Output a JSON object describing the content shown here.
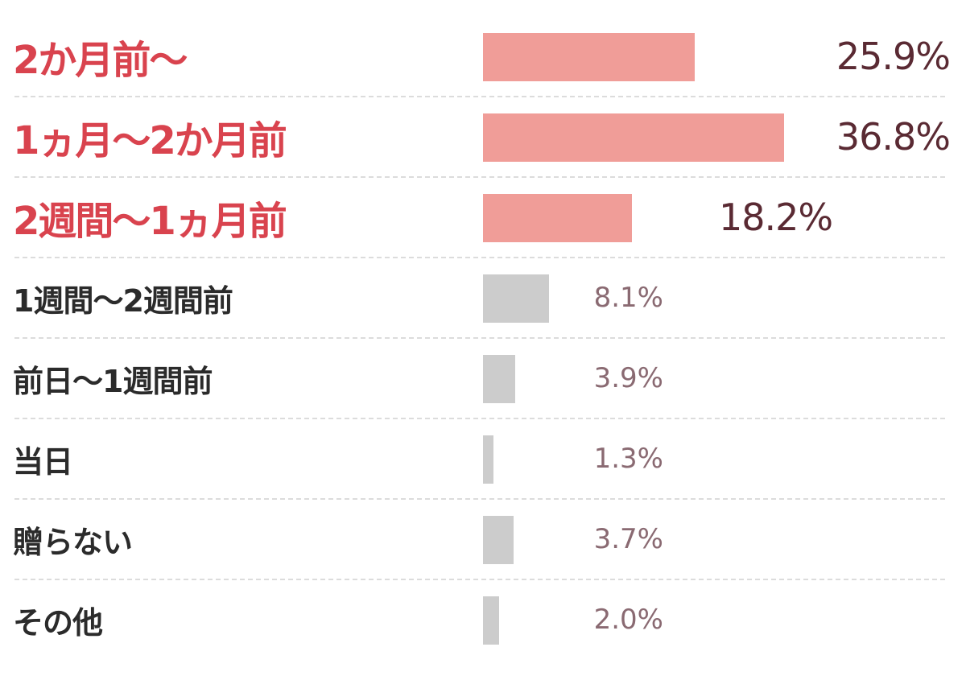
{
  "chart_data": {
    "type": "bar",
    "orientation": "horizontal",
    "categories": [
      "2か月前〜",
      "1ヵ月〜2か月前",
      "2週間〜1ヵ月前",
      "1週間〜2週間前",
      "前日〜1週間前",
      "当日",
      "贈らない",
      "その他"
    ],
    "values": [
      25.9,
      36.8,
      18.2,
      8.1,
      3.9,
      1.3,
      3.7,
      2.0
    ],
    "value_labels": [
      "25.9%",
      "36.8%",
      "18.2%",
      "8.1%",
      "3.9%",
      "1.3%",
      "3.7%",
      "2.0%"
    ],
    "highlighted": [
      true,
      true,
      true,
      false,
      false,
      false,
      false,
      false
    ],
    "unit": "%",
    "xlim": [
      0,
      40
    ],
    "grid": false,
    "legend": "none",
    "colors": {
      "highlight_label": "#d9434e",
      "normal_label": "#2b2b2b",
      "highlight_bar": "#f09d98",
      "normal_bar": "#cccccc",
      "highlight_value": "#5a2a33",
      "normal_value": "#8a6a72",
      "separator": "#dcdcdc"
    }
  }
}
